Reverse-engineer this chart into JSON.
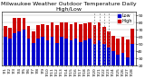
{
  "title": "Milwaukee Weather Outdoor Temperature Daily High/Low",
  "highs": [
    75,
    73,
    86,
    86,
    86,
    75,
    68,
    76,
    78,
    76,
    80,
    76,
    80,
    80,
    78,
    80,
    78,
    79,
    80,
    77,
    80,
    74,
    68,
    62,
    58,
    60,
    57,
    72
  ],
  "lows": [
    60,
    58,
    65,
    68,
    70,
    58,
    52,
    58,
    60,
    55,
    60,
    52,
    60,
    58,
    55,
    58,
    53,
    55,
    58,
    50,
    55,
    50,
    45,
    40,
    35,
    38,
    32,
    50
  ],
  "labels": [
    "7/1",
    "7/2",
    "7/3",
    "7/4",
    "7/5",
    "7/6",
    "7/7",
    "7/8",
    "7/9",
    "7/10",
    "7/11",
    "7/12",
    "7/13",
    "7/14",
    "7/15",
    "7/16",
    "7/17",
    "7/18",
    "7/19",
    "7/20",
    "7/21",
    "7/22",
    "7/23",
    "7/24",
    "7/25",
    "7/26",
    "7/27",
    "7/28"
  ],
  "high_color": "#cc0000",
  "low_color": "#0000cc",
  "bg_color": "#ffffff",
  "grid_color": "#aaaaaa",
  "ylim": [
    20,
    95
  ],
  "yticks": [
    20,
    30,
    40,
    50,
    60,
    70,
    80,
    90
  ],
  "ytick_labels": [
    "20",
    "30",
    "40",
    "50",
    "60",
    "70",
    "80",
    "90"
  ],
  "dotted_lines": [
    19,
    20,
    21,
    22
  ],
  "title_fontsize": 4.5,
  "tick_fontsize": 3.2,
  "legend_fontsize": 3.5
}
